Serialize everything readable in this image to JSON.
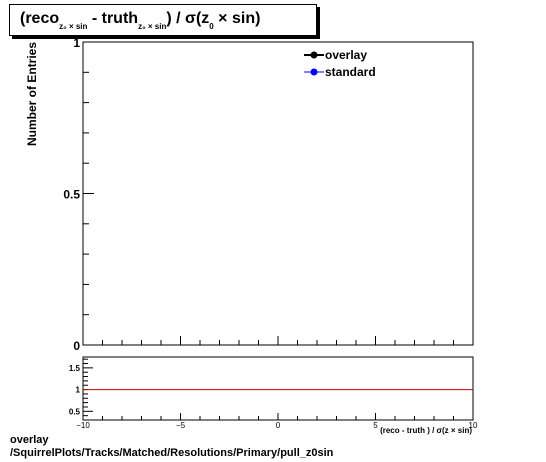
{
  "title": {
    "reco": "(reco",
    "reco_sub": "z₀ × sin",
    "truth": " - truth",
    "truth_sub": "z₀ × sin",
    "rest": ") /  σ(z",
    "sig_sub": "0",
    "tail": " × sin)"
  },
  "footer": {
    "line1": "overlay",
    "line2": "/SquirrelPlots/Tracks/Matched/Resolutions/Primary/pull_z0sin"
  },
  "chart_data": [
    {
      "type": "line",
      "ylabel": "Number of Entries",
      "xlim": [
        -10,
        10
      ],
      "ylim": [
        0,
        1
      ],
      "y_tick_labels": [
        "0",
        "0.5",
        "1"
      ],
      "legend_position": "top-right",
      "legend": [
        {
          "name": "overlay",
          "color": "#000000"
        },
        {
          "name": "standard",
          "color": "#0000ff"
        }
      ],
      "series": [
        {
          "name": "overlay",
          "x": [],
          "y": []
        },
        {
          "name": "standard",
          "x": [],
          "y": []
        }
      ]
    },
    {
      "type": "line",
      "xlim": [
        -10,
        10
      ],
      "ylim": [
        0.3,
        1.75
      ],
      "x_tick_labels": [
        "−10",
        "−5",
        "0",
        "5",
        "10"
      ],
      "y_tick_labels": [
        "0.5",
        "1",
        "1.5"
      ],
      "xlabel": "(reco      - truth       ) / σ(z  × sin)",
      "reference_line": {
        "y": 1,
        "color": "#cc0000"
      }
    }
  ]
}
